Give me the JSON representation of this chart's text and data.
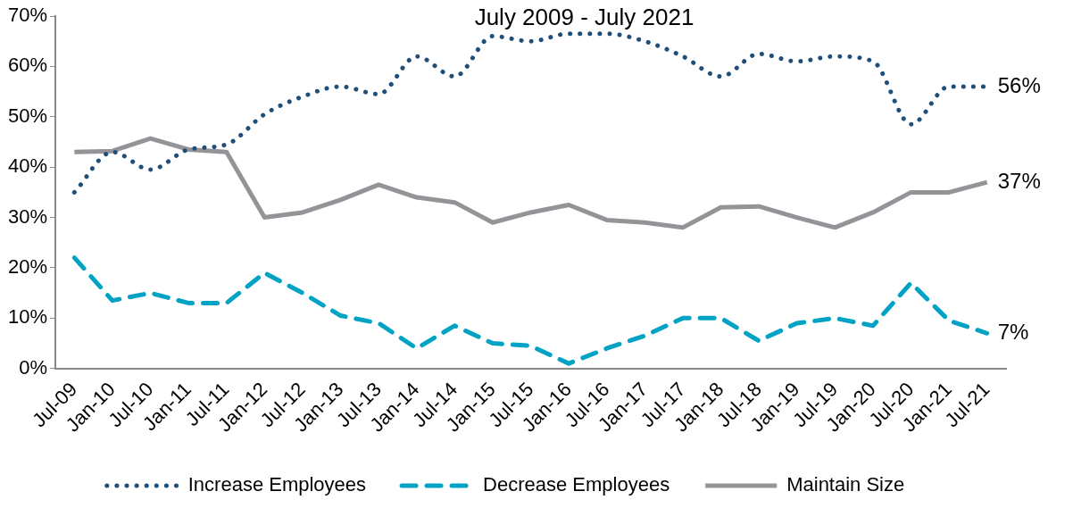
{
  "chart_data": {
    "type": "line",
    "title": "July 2009 - July 2021",
    "categories": [
      "Jul-09",
      "Jan-10",
      "Jul-10",
      "Jan-11",
      "Jul-11",
      "Jan-12",
      "Jul-12",
      "Jan-13",
      "Jul-13",
      "Jan-14",
      "Jul-14",
      "Jan-15",
      "Jul-15",
      "Jan-16",
      "Jul-16",
      "Jan-17",
      "Jul-17",
      "Jan-18",
      "Jul-18",
      "Jan-19",
      "Jul-19",
      "Jan-20",
      "Jul-20",
      "Jan-21",
      "Jul-21"
    ],
    "series": [
      {
        "name": "Increase Employees",
        "color": "#1f4e79",
        "line_style": "dotted",
        "values": [
          35,
          43,
          39.5,
          43.5,
          44.5,
          50.5,
          54,
          56,
          54.5,
          62,
          58,
          66,
          65,
          66.5,
          66.5,
          65,
          62,
          58,
          62.5,
          61,
          62,
          61,
          48.5,
          56,
          56
        ],
        "value_labels": [
          null,
          null,
          null,
          null,
          null,
          null,
          null,
          null,
          null,
          null,
          null,
          null,
          null,
          null,
          null,
          null,
          null,
          null,
          null,
          null,
          null,
          null,
          null,
          null,
          "56%"
        ]
      },
      {
        "name": "Decrease Employees",
        "color": "#00a3c4",
        "line_style": "dashed",
        "values": [
          22,
          13.5,
          15,
          13,
          13,
          19,
          15,
          10.5,
          9,
          4,
          8.5,
          5,
          4.5,
          1,
          4,
          6.5,
          10,
          10,
          5.5,
          9,
          10,
          8.5,
          17,
          9.5,
          7
        ],
        "value_labels": [
          null,
          null,
          null,
          null,
          null,
          null,
          null,
          null,
          null,
          null,
          null,
          null,
          null,
          null,
          null,
          null,
          null,
          null,
          null,
          null,
          null,
          null,
          null,
          null,
          "7%"
        ]
      },
      {
        "name": "Maintain Size",
        "color": "#939398",
        "line_style": "solid",
        "values": [
          43,
          43.2,
          45.7,
          43.5,
          43,
          30,
          31,
          33.5,
          36.5,
          34,
          33,
          29,
          31,
          32.5,
          29.5,
          29,
          28,
          32,
          32.2,
          30,
          28,
          31,
          35,
          35,
          37
        ],
        "value_labels": [
          null,
          null,
          null,
          null,
          null,
          null,
          null,
          null,
          null,
          null,
          null,
          null,
          null,
          null,
          null,
          null,
          null,
          null,
          null,
          null,
          null,
          null,
          null,
          null,
          "37%"
        ]
      }
    ],
    "ylim": [
      0,
      70
    ],
    "yticks": [
      {
        "value": 0,
        "label": "0%"
      },
      {
        "value": 10,
        "label": "10%"
      },
      {
        "value": 20,
        "label": "20%"
      },
      {
        "value": 30,
        "label": "30%"
      },
      {
        "value": 40,
        "label": "40%"
      },
      {
        "value": 50,
        "label": "50%"
      },
      {
        "value": 60,
        "label": "60%"
      },
      {
        "value": 70,
        "label": "70%"
      }
    ],
    "grid": false,
    "legend": "bottom",
    "marker": "none"
  }
}
